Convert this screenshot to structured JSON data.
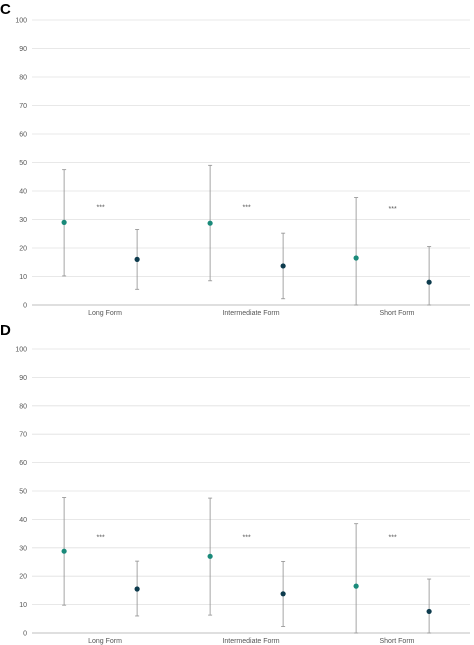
{
  "colors": {
    "series_a": "#1a8a7a",
    "series_b": "#0d3b4d",
    "grid": "#e0e0e0",
    "error": "#9a9a9a"
  },
  "chart_data": [
    {
      "panel": "C",
      "type": "scatter",
      "categories": [
        "Long Form",
        "Intermediate Form",
        "Short Form"
      ],
      "ylim": [
        0,
        100
      ],
      "yticks": [
        0,
        10,
        20,
        30,
        40,
        50,
        60,
        70,
        80,
        90,
        100
      ],
      "grid": true,
      "series": [
        {
          "values": [
            29,
            28.7,
            16.5
          ],
          "err_low": [
            10.2,
            8.5,
            0
          ],
          "err_high": [
            47.5,
            49,
            37.7
          ]
        },
        {
          "values": [
            16,
            13.7,
            8
          ],
          "err_low": [
            5.5,
            2.2,
            0
          ],
          "err_high": [
            26.5,
            25.2,
            20.5
          ]
        }
      ],
      "annotations": [
        "***",
        "***",
        "***"
      ]
    },
    {
      "panel": "D",
      "type": "scatter",
      "categories": [
        "Long Form",
        "Intermediate Form",
        "Short Form"
      ],
      "ylim": [
        0,
        100
      ],
      "yticks": [
        0,
        10,
        20,
        30,
        40,
        50,
        60,
        70,
        80,
        90,
        100
      ],
      "grid": true,
      "series": [
        {
          "values": [
            28.8,
            27,
            16.5
          ],
          "err_low": [
            9.8,
            6.3,
            0
          ],
          "err_high": [
            47.7,
            47.5,
            38.5
          ]
        },
        {
          "values": [
            15.5,
            13.8,
            7.6
          ],
          "err_low": [
            6,
            2.3,
            0
          ],
          "err_high": [
            25.3,
            25.2,
            19
          ]
        }
      ],
      "annotations": [
        "***",
        "***",
        "***"
      ]
    }
  ]
}
